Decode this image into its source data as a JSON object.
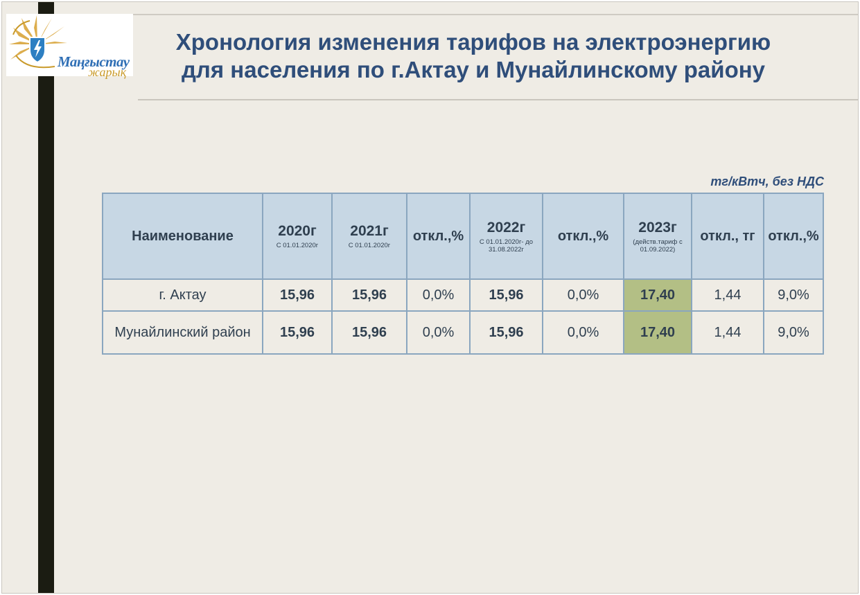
{
  "logo": {
    "line1": "Маңғыстау",
    "line2": "жарық"
  },
  "title": {
    "line1": "Хронология изменения тарифов на электроэнергию",
    "line2": "для населения по г.Актау и Мунайлинскому району"
  },
  "units": "тг/кВтч, без НДС",
  "table": {
    "headers": [
      {
        "main": "Наименование",
        "sub": ""
      },
      {
        "main": "2020г",
        "sub": "С 01.01.2020г"
      },
      {
        "main": "2021г",
        "sub": "С 01.01.2020г"
      },
      {
        "main": "откл.,%",
        "sub": ""
      },
      {
        "main": "2022г",
        "sub": "С 01.01.2020г- до 31.08.2022г"
      },
      {
        "main": "откл.,%",
        "sub": ""
      },
      {
        "main": "2023г",
        "sub": "(действ.тариф с 01.09.2022)"
      },
      {
        "main": "откл., тг",
        "sub": ""
      },
      {
        "main": "откл.,%",
        "sub": ""
      }
    ],
    "rows": [
      {
        "name": "г. Актау",
        "v2020": "15,96",
        "v2021": "15,96",
        "dev1": "0,0%",
        "v2022": "15,96",
        "dev2": "0,0%",
        "v2023": "17,40",
        "dev_tg": "1,44",
        "dev_pct": "9,0%"
      },
      {
        "name": "Мунайлинский район",
        "v2020": "15,96",
        "v2021": "15,96",
        "dev1": "0,0%",
        "v2022": "15,96",
        "dev2": "0,0%",
        "v2023": "17,40",
        "dev_tg": "1,44",
        "dev_pct": "9,0%"
      }
    ]
  },
  "colors": {
    "title": "#2f4e7a",
    "header_bg": "#c7d7e4",
    "highlight": "#b3bf85",
    "border": "#8aa6bf"
  }
}
